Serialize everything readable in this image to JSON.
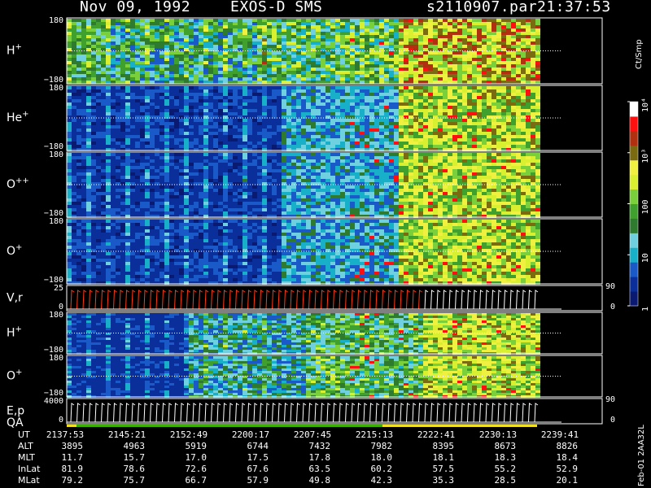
{
  "header": {
    "date": "Nov 09, 1992",
    "mission": "EXOS-D SMS",
    "file": "s2110907.par",
    "time": "21:37:53"
  },
  "colors": {
    "background": "#000000",
    "palette": [
      "#0a1a70",
      "#0b2f9a",
      "#1a5ac8",
      "#18b0c8",
      "#6fd0e0",
      "#2e7a2e",
      "#3fa02e",
      "#7ad03a",
      "#d8f030",
      "#f0f040",
      "#7a6a10",
      "#b03010",
      "#ff1010",
      "#ffffff"
    ]
  },
  "chart_data": {
    "type": "heatmap",
    "colorbar": {
      "unit": "Ct/Smp",
      "scale": "log",
      "range": [
        1,
        10000
      ],
      "ticks": [
        "1",
        "10",
        "100",
        "10³",
        "10⁴"
      ]
    },
    "panels": [
      {
        "label": "H",
        "sup": "+",
        "ymax": "180",
        "ymin": "−180"
      },
      {
        "label": "He",
        "sup": "+",
        "ymax": "180",
        "ymin": "−180"
      },
      {
        "label": "O",
        "sup": "++",
        "ymax": "180",
        "ymin": "−180"
      },
      {
        "label": "O",
        "sup": "+",
        "ymax": "180",
        "ymin": "−180"
      },
      {
        "label": "V,r",
        "sup": "",
        "ymax": "25",
        "ymin": "0",
        "right_max": "90",
        "right_min": "0"
      },
      {
        "label": "H",
        "sup": "+",
        "ymax": "180",
        "ymin": "−180"
      },
      {
        "label": "O",
        "sup": "+",
        "ymax": "180",
        "ymin": "−180"
      },
      {
        "label": "E,p",
        "sup": "",
        "ymax": "4000",
        "ymin": "0",
        "right_max": "90",
        "right_min": "0"
      }
    ],
    "qa_label": "QA"
  },
  "ephemeris": {
    "rows": [
      {
        "label": "UT",
        "values": [
          "2137:53",
          "2145:21",
          "2152:49",
          "2200:17",
          "2207:45",
          "2215:13",
          "2222:41",
          "2230:13",
          "2239:41"
        ]
      },
      {
        "label": "ALT",
        "values": [
          "3895",
          "4963",
          "5919",
          "6744",
          "7432",
          "7982",
          "8395",
          "8673",
          "8826"
        ]
      },
      {
        "label": "MLT",
        "values": [
          "11.7",
          "15.7",
          "17.0",
          "17.5",
          "17.8",
          "18.0",
          "18.1",
          "18.3",
          "18.4"
        ]
      },
      {
        "label": "InLat",
        "values": [
          "81.9",
          "78.6",
          "72.6",
          "67.6",
          "63.5",
          "60.2",
          "57.5",
          "55.2",
          "52.9"
        ]
      },
      {
        "label": "MLat",
        "values": [
          "79.2",
          "75.7",
          "66.7",
          "57.9",
          "49.8",
          "42.3",
          "35.3",
          "28.5",
          "20.1"
        ]
      }
    ]
  },
  "footnote": "Feb-01 2AA32L"
}
